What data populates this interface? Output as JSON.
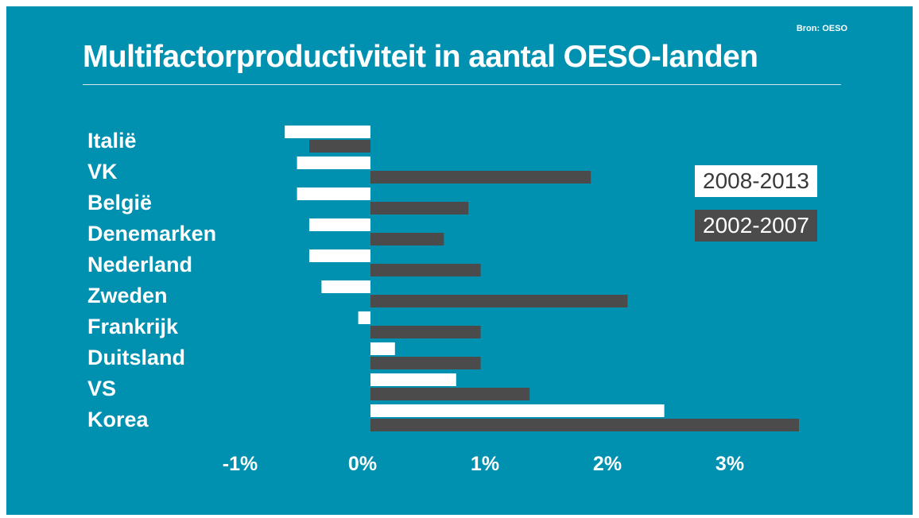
{
  "source": "Bron: OESO",
  "title": "Multifactorproductiviteit in aantal OESO-landen",
  "colors": {
    "background": "#0090b0",
    "series_2008_2013": "#ffffff",
    "series_2002_2007": "#4b4b4b"
  },
  "chart_data": {
    "type": "bar",
    "orientation": "horizontal",
    "title": "Multifactorproductiviteit in aantal OESO-landen",
    "categories": [
      "Italië",
      "VK",
      "België",
      "Denemarken",
      "Nederland",
      "Zweden",
      "Frankrijk",
      "Duitsland",
      "VS",
      "Korea"
    ],
    "series": [
      {
        "name": "2008-2013",
        "values": [
          -0.7,
          -0.6,
          -0.6,
          -0.5,
          -0.5,
          -0.4,
          -0.1,
          0.2,
          0.7,
          2.4
        ]
      },
      {
        "name": "2002-2007",
        "values": [
          -0.5,
          1.8,
          0.8,
          0.6,
          0.9,
          2.1,
          0.9,
          0.9,
          1.3,
          3.5
        ]
      }
    ],
    "x_tick_labels": [
      "-1%",
      "0%",
      "1%",
      "2%",
      "3%"
    ],
    "x_ticks": [
      -1,
      0,
      1,
      2,
      3
    ],
    "xlim": [
      -1,
      3.5
    ],
    "grid": false,
    "legend_position": "right"
  }
}
